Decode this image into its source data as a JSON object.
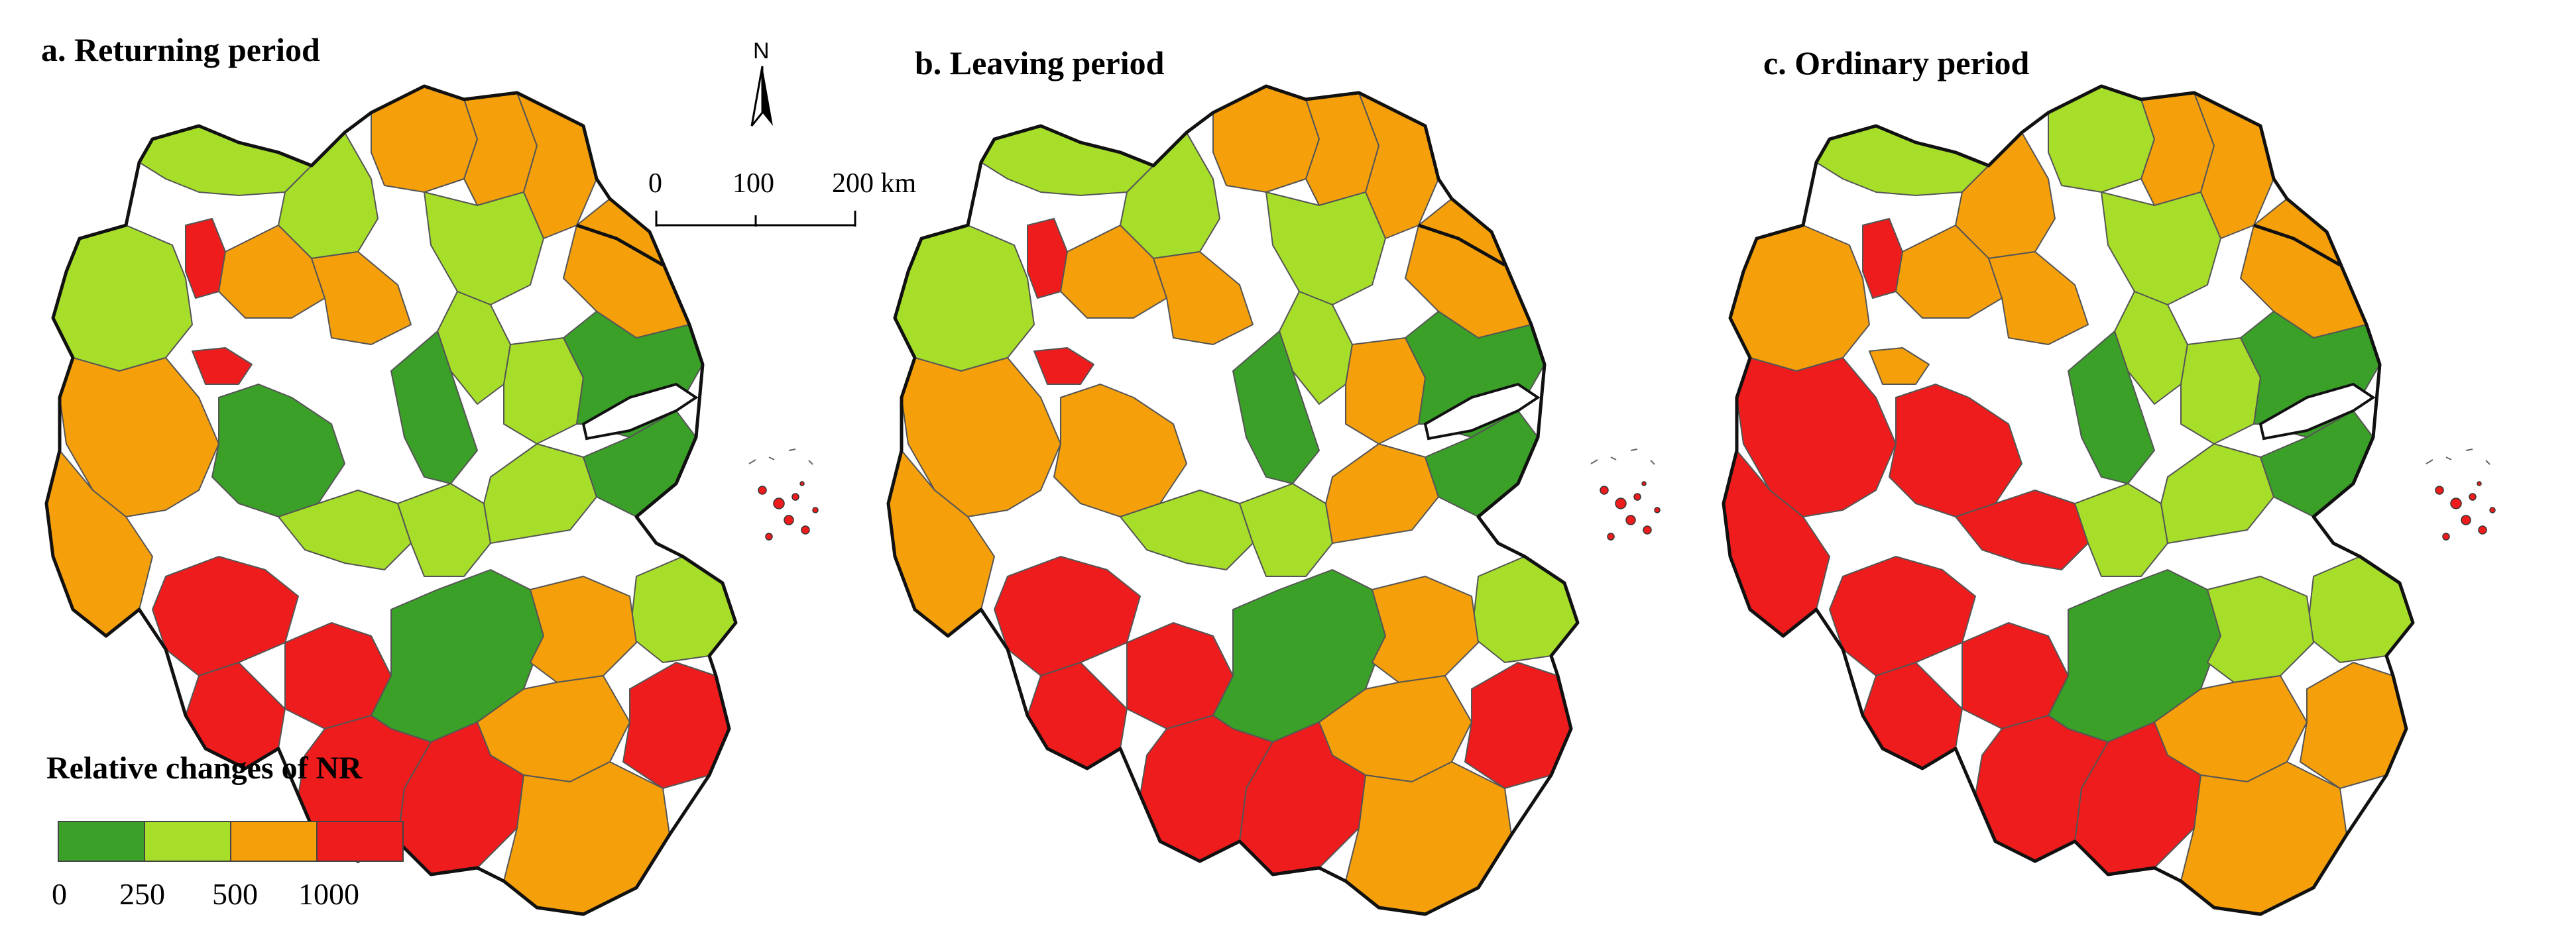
{
  "panels": [
    {
      "id": "a",
      "title": "a. Returning period",
      "regions": {
        "nw1": "#a6de2a",
        "nw2": "#a6de2a",
        "xz": "#a6de2a",
        "red1": "#ee1c1c",
        "red2": "#ee1c1c",
        "n1": "#f5a00a",
        "n2": "#f5a00a",
        "lyg": "#f5a00a",
        "yc": "#f5a00a",
        "w1": "#f5a00a",
        "w2": "#f5a00a",
        "w3": "#f5a00a",
        "c1": "#a6de2a",
        "hf": "#3aa027",
        "yz": "#a6de2a",
        "tz": "#a6de2a",
        "nt": "#3aa027",
        "nj": "#3aa027",
        "sw1": "#f5a00a",
        "sw2": "#a6de2a",
        "cz": "#a6de2a",
        "wx": "#a6de2a",
        "sh": "#3aa027",
        "s1": "#ee1c1c",
        "s2": "#ee1c1c",
        "s3": "#ee1c1c",
        "hz": "#3aa027",
        "nb": "#a6de2a",
        "sx": "#f5a00a",
        "jh": "#f5a00a",
        "tzz": "#ee1c1c",
        "ls": "#ee1c1c",
        "qz": "#ee1c1c",
        "wz": "#f5a00a"
      }
    },
    {
      "id": "b",
      "title": "b. Leaving period",
      "regions": {
        "nw1": "#a6de2a",
        "nw2": "#a6de2a",
        "xz": "#a6de2a",
        "red1": "#ee1c1c",
        "red2": "#ee1c1c",
        "n1": "#f5a00a",
        "n2": "#f5a00a",
        "lyg": "#f5a00a",
        "yc": "#f5a00a",
        "w1": "#f5a00a",
        "w2": "#f5a00a",
        "w3": "#f5a00a",
        "c1": "#a6de2a",
        "hf": "#f5a00a",
        "yz": "#a6de2a",
        "tz": "#f5a00a",
        "nt": "#3aa027",
        "nj": "#3aa027",
        "sw1": "#f5a00a",
        "sw2": "#a6de2a",
        "cz": "#a6de2a",
        "wx": "#f5a00a",
        "sh": "#3aa027",
        "s1": "#ee1c1c",
        "s2": "#ee1c1c",
        "s3": "#ee1c1c",
        "hz": "#3aa027",
        "nb": "#a6de2a",
        "sx": "#f5a00a",
        "jh": "#f5a00a",
        "tzz": "#ee1c1c",
        "ls": "#ee1c1c",
        "qz": "#ee1c1c",
        "wz": "#f5a00a"
      }
    },
    {
      "id": "c",
      "title": "c. Ordinary period",
      "regions": {
        "nw1": "#a6de2a",
        "nw2": "#f5a00a",
        "xz": "#f5a00a",
        "red1": "#ee1c1c",
        "red2": "#f5a00a",
        "n1": "#a6de2a",
        "n2": "#f5a00a",
        "lyg": "#f5a00a",
        "yc": "#f5a00a",
        "w1": "#f5a00a",
        "w2": "#f5a00a",
        "w3": "#ee1c1c",
        "c1": "#a6de2a",
        "hf": "#ee1c1c",
        "yz": "#a6de2a",
        "tz": "#a6de2a",
        "nt": "#3aa027",
        "nj": "#3aa027",
        "sw1": "#ee1c1c",
        "sw2": "#ee1c1c",
        "cz": "#a6de2a",
        "wx": "#a6de2a",
        "sh": "#3aa027",
        "s1": "#ee1c1c",
        "s2": "#ee1c1c",
        "s3": "#ee1c1c",
        "hz": "#3aa027",
        "nb": "#a6de2a",
        "sx": "#a6de2a",
        "jh": "#f5a00a",
        "tzz": "#f5a00a",
        "ls": "#ee1c1c",
        "qz": "#ee1c1c",
        "wz": "#f5a00a"
      }
    }
  ],
  "compass": {
    "label": "N"
  },
  "scale_bar": {
    "ticks": [
      "0",
      "100",
      "200 km"
    ]
  },
  "legend": {
    "title": "Relative changes of NR",
    "classes": [
      "#3aa027",
      "#a6de2a",
      "#f5a00a",
      "#ee1c1c"
    ],
    "ticks": [
      "0",
      "250",
      "500",
      "1000"
    ]
  }
}
